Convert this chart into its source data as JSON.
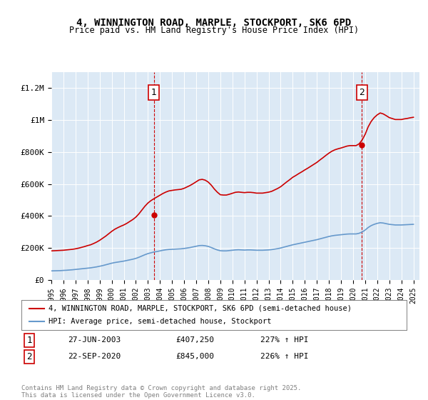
{
  "title": "4, WINNINGTON ROAD, MARPLE, STOCKPORT, SK6 6PD",
  "subtitle": "Price paid vs. HM Land Registry's House Price Index (HPI)",
  "legend_label_red": "4, WINNINGTON ROAD, MARPLE, STOCKPORT, SK6 6PD (semi-detached house)",
  "legend_label_blue": "HPI: Average price, semi-detached house, Stockport",
  "footer": "Contains HM Land Registry data © Crown copyright and database right 2025.\nThis data is licensed under the Open Government Licence v3.0.",
  "annotation1_label": "1",
  "annotation1_date": "27-JUN-2003",
  "annotation1_price": "£407,250",
  "annotation1_hpi": "227% ↑ HPI",
  "annotation2_label": "2",
  "annotation2_date": "22-SEP-2020",
  "annotation2_price": "£845,000",
  "annotation2_hpi": "226% ↑ HPI",
  "xlim": [
    1995.0,
    2025.5
  ],
  "ylim": [
    0,
    1300000
  ],
  "yticks": [
    0,
    200000,
    400000,
    600000,
    800000,
    1000000,
    1200000
  ],
  "ytick_labels": [
    "£0",
    "£200K",
    "£400K",
    "£600K",
    "£800K",
    "£1M",
    "£1.2M"
  ],
  "xticks": [
    1995,
    1996,
    1997,
    1998,
    1999,
    2000,
    2001,
    2002,
    2003,
    2004,
    2005,
    2006,
    2007,
    2008,
    2009,
    2010,
    2011,
    2012,
    2013,
    2014,
    2015,
    2016,
    2017,
    2018,
    2019,
    2020,
    2021,
    2022,
    2023,
    2024,
    2025
  ],
  "background_color": "#dce9f5",
  "plot_bg_color": "#dce9f5",
  "red_color": "#cc0000",
  "blue_color": "#6699cc",
  "vline_color": "#cc0000",
  "vline1_x": 2003.49,
  "vline2_x": 2020.73,
  "sale1_x": 2003.49,
  "sale1_y": 407250,
  "sale2_x": 2020.73,
  "sale2_y": 845000,
  "hpi_years": [
    1995.0,
    1995.25,
    1995.5,
    1995.75,
    1996.0,
    1996.25,
    1996.5,
    1996.75,
    1997.0,
    1997.25,
    1997.5,
    1997.75,
    1998.0,
    1998.25,
    1998.5,
    1998.75,
    1999.0,
    1999.25,
    1999.5,
    1999.75,
    2000.0,
    2000.25,
    2000.5,
    2000.75,
    2001.0,
    2001.25,
    2001.5,
    2001.75,
    2002.0,
    2002.25,
    2002.5,
    2002.75,
    2003.0,
    2003.25,
    2003.5,
    2003.75,
    2004.0,
    2004.25,
    2004.5,
    2004.75,
    2005.0,
    2005.25,
    2005.5,
    2005.75,
    2006.0,
    2006.25,
    2006.5,
    2006.75,
    2007.0,
    2007.25,
    2007.5,
    2007.75,
    2008.0,
    2008.25,
    2008.5,
    2008.75,
    2009.0,
    2009.25,
    2009.5,
    2009.75,
    2010.0,
    2010.25,
    2010.5,
    2010.75,
    2011.0,
    2011.25,
    2011.5,
    2011.75,
    2012.0,
    2012.25,
    2012.5,
    2012.75,
    2013.0,
    2013.25,
    2013.5,
    2013.75,
    2014.0,
    2014.25,
    2014.5,
    2014.75,
    2015.0,
    2015.25,
    2015.5,
    2015.75,
    2016.0,
    2016.25,
    2016.5,
    2016.75,
    2017.0,
    2017.25,
    2017.5,
    2017.75,
    2018.0,
    2018.25,
    2018.5,
    2018.75,
    2019.0,
    2019.25,
    2019.5,
    2019.75,
    2020.0,
    2020.25,
    2020.5,
    2020.75,
    2021.0,
    2021.25,
    2021.5,
    2021.75,
    2022.0,
    2022.25,
    2022.5,
    2022.75,
    2023.0,
    2023.25,
    2023.5,
    2023.75,
    2024.0,
    2024.25,
    2024.5,
    2024.75,
    2025.0
  ],
  "hpi_values": [
    57000,
    57500,
    58000,
    58500,
    60000,
    61000,
    62500,
    64000,
    66000,
    68000,
    70000,
    72000,
    74000,
    76000,
    79000,
    82000,
    86000,
    90000,
    95000,
    100000,
    105000,
    109000,
    112000,
    115000,
    118000,
    122000,
    126000,
    130000,
    135000,
    142000,
    150000,
    158000,
    165000,
    170000,
    175000,
    178000,
    182000,
    186000,
    189000,
    191000,
    192000,
    193000,
    194000,
    195000,
    197000,
    200000,
    203000,
    207000,
    211000,
    215000,
    216000,
    214000,
    210000,
    203000,
    195000,
    188000,
    183000,
    182000,
    182000,
    184000,
    186000,
    188000,
    189000,
    188000,
    187000,
    188000,
    188000,
    187000,
    186000,
    186000,
    186000,
    187000,
    188000,
    190000,
    193000,
    196000,
    200000,
    205000,
    210000,
    215000,
    220000,
    224000,
    228000,
    232000,
    236000,
    240000,
    244000,
    248000,
    252000,
    257000,
    262000,
    267000,
    272000,
    276000,
    279000,
    281000,
    283000,
    285000,
    287000,
    288000,
    288000,
    288000,
    292000,
    300000,
    312000,
    328000,
    340000,
    348000,
    354000,
    358000,
    356000,
    352000,
    348000,
    346000,
    344000,
    344000,
    344000,
    345000,
    346000,
    347000,
    348000
  ],
  "red_years": [
    1995.0,
    1995.25,
    1995.5,
    1995.75,
    1996.0,
    1996.25,
    1996.5,
    1996.75,
    1997.0,
    1997.25,
    1997.5,
    1997.75,
    1998.0,
    1998.25,
    1998.5,
    1998.75,
    1999.0,
    1999.25,
    1999.5,
    1999.75,
    2000.0,
    2000.25,
    2000.5,
    2000.75,
    2001.0,
    2001.25,
    2001.5,
    2001.75,
    2002.0,
    2002.25,
    2002.5,
    2002.75,
    2003.0,
    2003.25,
    2003.5,
    2003.75,
    2004.0,
    2004.25,
    2004.5,
    2004.75,
    2005.0,
    2005.25,
    2005.5,
    2005.75,
    2006.0,
    2006.25,
    2006.5,
    2006.75,
    2007.0,
    2007.25,
    2007.5,
    2007.75,
    2008.0,
    2008.25,
    2008.5,
    2008.75,
    2009.0,
    2009.25,
    2009.5,
    2009.75,
    2010.0,
    2010.25,
    2010.5,
    2010.75,
    2011.0,
    2011.25,
    2011.5,
    2011.75,
    2012.0,
    2012.25,
    2012.5,
    2012.75,
    2013.0,
    2013.25,
    2013.5,
    2013.75,
    2014.0,
    2014.25,
    2014.5,
    2014.75,
    2015.0,
    2015.25,
    2015.5,
    2015.75,
    2016.0,
    2016.25,
    2016.5,
    2016.75,
    2017.0,
    2017.25,
    2017.5,
    2017.75,
    2018.0,
    2018.25,
    2018.5,
    2018.75,
    2019.0,
    2019.25,
    2019.5,
    2019.75,
    2020.0,
    2020.25,
    2020.5,
    2020.75,
    2021.0,
    2021.25,
    2021.5,
    2021.75,
    2022.0,
    2022.25,
    2022.5,
    2022.75,
    2023.0,
    2023.25,
    2023.5,
    2023.75,
    2024.0,
    2024.25,
    2024.5,
    2024.75,
    2025.0
  ],
  "red_values": [
    182000,
    183000,
    184000,
    185000,
    186000,
    188000,
    190000,
    192000,
    195000,
    199000,
    204000,
    209000,
    215000,
    220000,
    228000,
    237000,
    248000,
    261000,
    274000,
    289000,
    304000,
    317000,
    327000,
    336000,
    344000,
    354000,
    366000,
    378000,
    393000,
    413000,
    437000,
    461000,
    481000,
    496000,
    508000,
    519000,
    530000,
    541000,
    550000,
    557000,
    560000,
    563000,
    565000,
    567000,
    573000,
    582000,
    591000,
    602000,
    614000,
    626000,
    629000,
    624000,
    612000,
    593000,
    569000,
    549000,
    533000,
    531000,
    531000,
    536000,
    542000,
    548000,
    550000,
    548000,
    546000,
    548000,
    548000,
    546000,
    543000,
    543000,
    543000,
    546000,
    549000,
    554000,
    563000,
    572000,
    583000,
    598000,
    613000,
    627000,
    642000,
    653000,
    665000,
    676000,
    688000,
    699000,
    711000,
    723000,
    735000,
    750000,
    764000,
    779000,
    793000,
    805000,
    814000,
    820000,
    825000,
    831000,
    837000,
    840000,
    840000,
    840000,
    851000,
    875000,
    910000,
    957000,
    991000,
    1015000,
    1032000,
    1044000,
    1038000,
    1027000,
    1015000,
    1009000,
    1003000,
    1003000,
    1003000,
    1007000,
    1010000,
    1014000,
    1017000
  ]
}
